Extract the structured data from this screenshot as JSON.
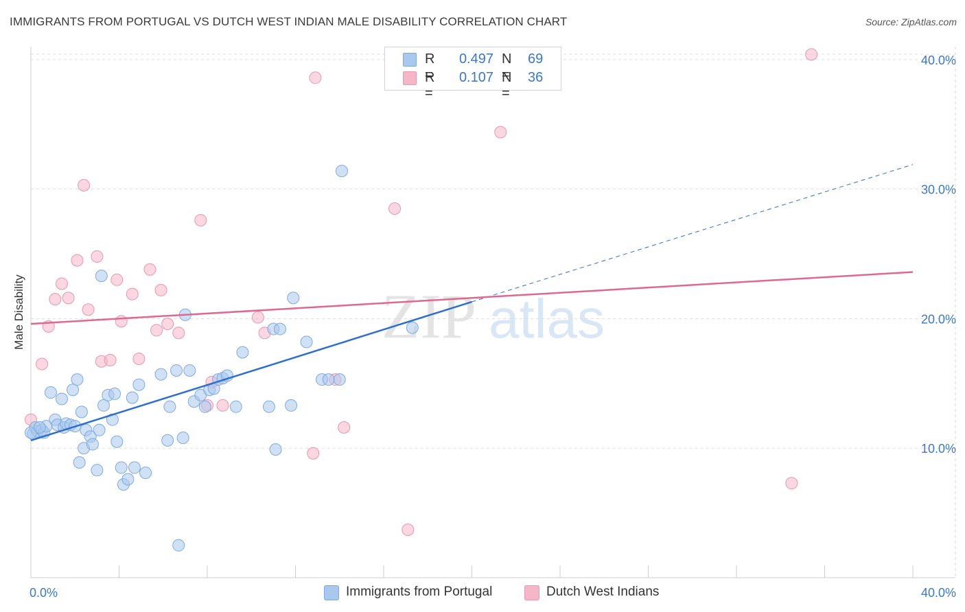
{
  "header": {
    "title": "IMMIGRANTS FROM PORTUGAL VS DUTCH WEST INDIAN MALE DISABILITY CORRELATION CHART",
    "source": "Source: ZipAtlas.com"
  },
  "watermark": {
    "zip": "ZIP",
    "atlas": "atlas"
  },
  "legend": {
    "rows": [
      {
        "r_label": "R =",
        "r_value": "0.497",
        "n_label": "N =",
        "n_value": "69",
        "color": "#a9c8ef"
      },
      {
        "r_label": "R =",
        "r_value": "0.107",
        "n_label": "N =",
        "n_value": "36",
        "color": "#f5b6c8"
      }
    ]
  },
  "bottom_legend": [
    {
      "label": "Immigrants from Portugal",
      "color": "#a9c8ef"
    },
    {
      "label": "Dutch West Indians",
      "color": "#f5b6c8"
    }
  ],
  "chart_data": {
    "type": "scatter",
    "title": "IMMIGRANTS FROM PORTUGAL VS DUTCH WEST INDIAN MALE DISABILITY CORRELATION CHART",
    "xlabel": "",
    "ylabel": "Male Disability",
    "xlim": [
      0,
      40
    ],
    "ylim": [
      0,
      41
    ],
    "x_tick_labels": [
      "0.0%",
      "40.0%"
    ],
    "y_ticks": [
      10,
      20,
      30,
      40
    ],
    "y_tick_labels": [
      "10.0%",
      "20.0%",
      "30.0%",
      "40.0%"
    ],
    "grid": "horizontal dashed",
    "legend_placement": "top-center",
    "colors": {
      "portugal_fill": "#a9c8ef",
      "portugal_line": "#2c6fce",
      "dwi_fill": "#f5b6c8",
      "dwi_line": "#e06790"
    },
    "series": [
      {
        "name": "Immigrants from Portugal",
        "trend": {
          "x": [
            0,
            20.0
          ],
          "y": [
            10.6,
            21.3
          ],
          "extended_x": [
            20.0,
            40.0
          ],
          "extended_y": [
            21.3,
            31.9
          ]
        },
        "points": [
          [
            0.1,
            11.1
          ],
          [
            0.2,
            11.6
          ],
          [
            0.3,
            11.3
          ],
          [
            0.5,
            11.4
          ],
          [
            0.6,
            11.2
          ],
          [
            0.7,
            11.7
          ],
          [
            0.9,
            14.3
          ],
          [
            1.1,
            12.2
          ],
          [
            1.2,
            11.8
          ],
          [
            1.4,
            13.8
          ],
          [
            1.5,
            11.6
          ],
          [
            1.6,
            11.9
          ],
          [
            1.8,
            11.8
          ],
          [
            1.9,
            14.5
          ],
          [
            2.1,
            15.3
          ],
          [
            2.2,
            8.9
          ],
          [
            2.3,
            12.8
          ],
          [
            2.4,
            10.0
          ],
          [
            2.5,
            11.4
          ],
          [
            2.7,
            10.9
          ],
          [
            2.8,
            10.3
          ],
          [
            3.0,
            8.3
          ],
          [
            3.1,
            11.4
          ],
          [
            3.2,
            23.3
          ],
          [
            3.3,
            13.3
          ],
          [
            3.5,
            14.1
          ],
          [
            3.7,
            12.2
          ],
          [
            3.8,
            14.2
          ],
          [
            3.9,
            10.5
          ],
          [
            4.1,
            8.5
          ],
          [
            4.2,
            7.2
          ],
          [
            4.4,
            7.6
          ],
          [
            4.6,
            13.9
          ],
          [
            4.7,
            8.5
          ],
          [
            4.9,
            14.9
          ],
          [
            5.2,
            8.1
          ],
          [
            5.9,
            15.7
          ],
          [
            6.2,
            10.6
          ],
          [
            6.3,
            13.2
          ],
          [
            6.6,
            16.0
          ],
          [
            6.7,
            2.5
          ],
          [
            6.9,
            10.8
          ],
          [
            7.0,
            20.3
          ],
          [
            7.2,
            16.0
          ],
          [
            7.4,
            13.6
          ],
          [
            7.7,
            14.1
          ],
          [
            7.9,
            13.2
          ],
          [
            8.1,
            14.5
          ],
          [
            8.3,
            14.6
          ],
          [
            8.5,
            15.3
          ],
          [
            8.7,
            15.4
          ],
          [
            8.9,
            15.6
          ],
          [
            9.3,
            13.2
          ],
          [
            9.6,
            17.4
          ],
          [
            10.8,
            13.2
          ],
          [
            11.0,
            19.2
          ],
          [
            11.1,
            9.9
          ],
          [
            11.3,
            19.2
          ],
          [
            11.8,
            13.3
          ],
          [
            11.9,
            21.6
          ],
          [
            12.5,
            18.2
          ],
          [
            13.2,
            15.3
          ],
          [
            13.5,
            15.3
          ],
          [
            14.0,
            15.3
          ],
          [
            14.1,
            31.4
          ],
          [
            17.3,
            19.3
          ],
          [
            0.0,
            11.2
          ],
          [
            0.4,
            11.6
          ],
          [
            2.0,
            11.7
          ]
        ]
      },
      {
        "name": "Dutch West Indians",
        "trend": {
          "x": [
            0,
            40.0
          ],
          "y": [
            19.6,
            23.6
          ]
        },
        "points": [
          [
            0.0,
            12.2
          ],
          [
            0.5,
            16.5
          ],
          [
            0.8,
            19.4
          ],
          [
            1.1,
            21.5
          ],
          [
            1.4,
            22.7
          ],
          [
            1.7,
            21.6
          ],
          [
            2.1,
            24.5
          ],
          [
            2.4,
            30.3
          ],
          [
            2.6,
            20.7
          ],
          [
            3.0,
            24.8
          ],
          [
            3.2,
            16.7
          ],
          [
            3.6,
            16.8
          ],
          [
            3.9,
            23.0
          ],
          [
            4.1,
            19.8
          ],
          [
            4.6,
            21.9
          ],
          [
            4.9,
            16.9
          ],
          [
            5.4,
            23.8
          ],
          [
            5.7,
            19.1
          ],
          [
            5.9,
            22.2
          ],
          [
            6.2,
            19.6
          ],
          [
            6.7,
            18.9
          ],
          [
            7.7,
            27.6
          ],
          [
            8.0,
            13.3
          ],
          [
            8.2,
            15.1
          ],
          [
            8.7,
            13.3
          ],
          [
            10.3,
            20.1
          ],
          [
            10.6,
            18.9
          ],
          [
            12.8,
            9.6
          ],
          [
            12.9,
            38.6
          ],
          [
            13.8,
            15.3
          ],
          [
            14.2,
            11.6
          ],
          [
            16.5,
            28.5
          ],
          [
            17.1,
            3.7
          ],
          [
            21.3,
            34.4
          ],
          [
            34.5,
            7.3
          ],
          [
            35.4,
            40.4
          ]
        ]
      }
    ]
  }
}
